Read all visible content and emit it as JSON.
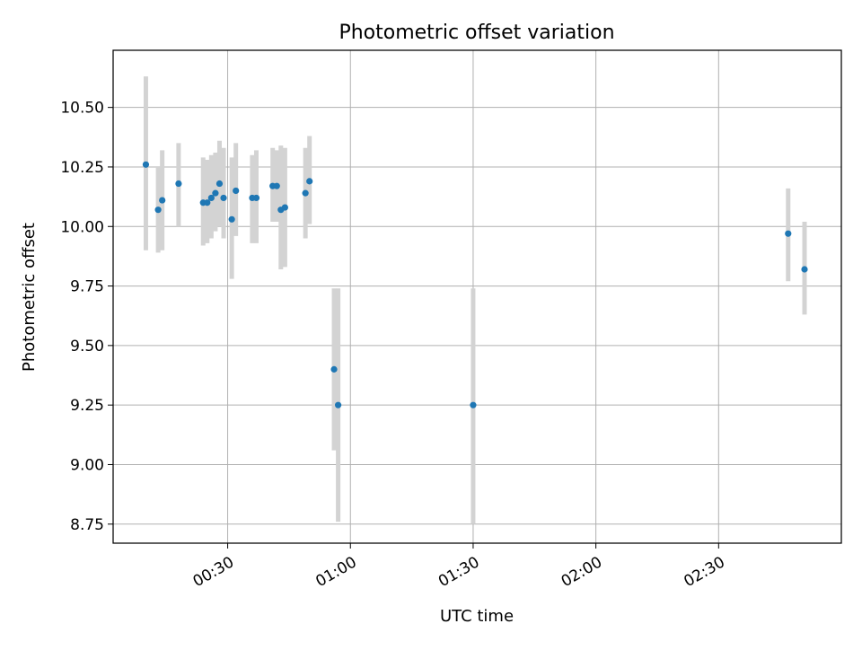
{
  "chart_data": {
    "type": "scatter",
    "title": "Photometric offset variation",
    "xlabel": "UTC time",
    "ylabel": "Photometric offset",
    "x_ticks": [
      "00:30",
      "01:00",
      "01:30",
      "02:00",
      "02:30"
    ],
    "y_ticks": [
      "8.75",
      "9.00",
      "9.25",
      "9.50",
      "9.75",
      "10.00",
      "10.25",
      "10.50"
    ],
    "xlim": [
      "00:02",
      "03:00"
    ],
    "ylim": [
      8.67,
      10.74
    ],
    "grid": true,
    "marker_color": "#1f77b4",
    "errorbar_color": "#d3d3d3",
    "points": [
      {
        "x": "00:10",
        "y": 10.26,
        "err_low": 9.9,
        "err_high": 10.63
      },
      {
        "x": "00:13",
        "y": 10.07,
        "err_low": 9.89,
        "err_high": 10.25
      },
      {
        "x": "00:14",
        "y": 10.11,
        "err_low": 9.9,
        "err_high": 10.32
      },
      {
        "x": "00:18",
        "y": 10.18,
        "err_low": 10.0,
        "err_high": 10.35
      },
      {
        "x": "00:24",
        "y": 10.1,
        "err_low": 9.92,
        "err_high": 10.29
      },
      {
        "x": "00:25",
        "y": 10.1,
        "err_low": 9.93,
        "err_high": 10.28
      },
      {
        "x": "00:26",
        "y": 10.12,
        "err_low": 9.95,
        "err_high": 10.3
      },
      {
        "x": "00:27",
        "y": 10.14,
        "err_low": 9.98,
        "err_high": 10.31
      },
      {
        "x": "00:28",
        "y": 10.18,
        "err_low": 10.0,
        "err_high": 10.36
      },
      {
        "x": "00:29",
        "y": 10.12,
        "err_low": 9.95,
        "err_high": 10.33
      },
      {
        "x": "00:31",
        "y": 10.03,
        "err_low": 9.78,
        "err_high": 10.29
      },
      {
        "x": "00:32",
        "y": 10.15,
        "err_low": 9.96,
        "err_high": 10.35
      },
      {
        "x": "00:36",
        "y": 10.12,
        "err_low": 9.93,
        "err_high": 10.3
      },
      {
        "x": "00:37",
        "y": 10.12,
        "err_low": 9.93,
        "err_high": 10.32
      },
      {
        "x": "00:41",
        "y": 10.17,
        "err_low": 10.02,
        "err_high": 10.33
      },
      {
        "x": "00:42",
        "y": 10.17,
        "err_low": 10.02,
        "err_high": 10.32
      },
      {
        "x": "00:43",
        "y": 10.07,
        "err_low": 9.82,
        "err_high": 10.34
      },
      {
        "x": "00:44",
        "y": 10.08,
        "err_low": 9.83,
        "err_high": 10.33
      },
      {
        "x": "00:49",
        "y": 10.14,
        "err_low": 9.95,
        "err_high": 10.33
      },
      {
        "x": "00:50",
        "y": 10.19,
        "err_low": 10.01,
        "err_high": 10.38
      },
      {
        "x": "00:56",
        "y": 9.4,
        "err_low": 9.06,
        "err_high": 9.74
      },
      {
        "x": "00:57",
        "y": 9.25,
        "err_low": 8.76,
        "err_high": 9.74
      },
      {
        "x": "01:30",
        "y": 9.25,
        "err_low": 8.75,
        "err_high": 9.74
      },
      {
        "x": "02:47",
        "y": 9.97,
        "err_low": 9.77,
        "err_high": 10.16
      },
      {
        "x": "02:51",
        "y": 9.82,
        "err_low": 9.63,
        "err_high": 10.02
      }
    ]
  }
}
